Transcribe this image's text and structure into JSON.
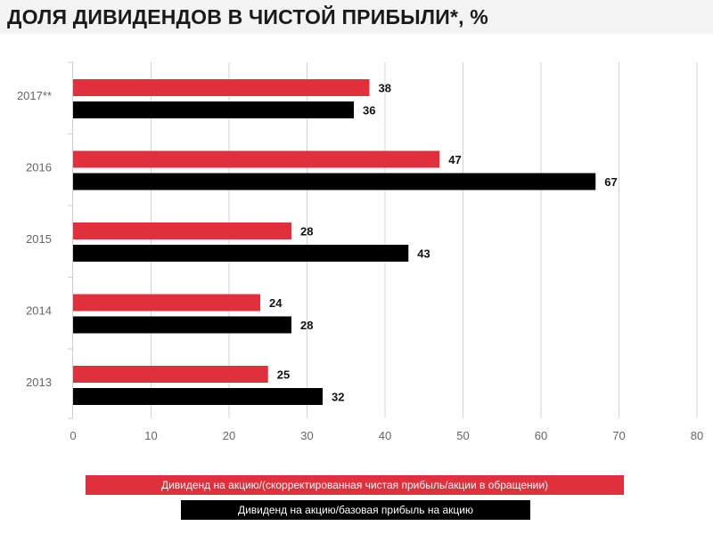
{
  "title": "ДОЛЯ ДИВИДЕНДОВ В ЧИСТОЙ ПРИБЫЛИ*, %",
  "colors": {
    "series_red": "#e0303c",
    "series_black": "#000000",
    "grid": "#d4d4d4",
    "axis_text": "#666666"
  },
  "chart_data": {
    "type": "bar",
    "orientation": "horizontal",
    "categories": [
      "2017**",
      "2016",
      "2015",
      "2014",
      "2013"
    ],
    "series": [
      {
        "name": "Дивиденд на акцию/(скорректированная чистая прибыль/акции в обращении)",
        "color": "#e0303c",
        "values": [
          38,
          47,
          28,
          24,
          25
        ]
      },
      {
        "name": "Дивиденд на акцию/базовая прибыль на акцию",
        "color": "#000000",
        "values": [
          36,
          67,
          43,
          28,
          32
        ]
      }
    ],
    "xlim": [
      0,
      80
    ],
    "xticks": [
      "0",
      "10",
      "20",
      "30",
      "40",
      "50",
      "60",
      "70",
      "80"
    ],
    "grid": true,
    "legend_position": "bottom"
  }
}
